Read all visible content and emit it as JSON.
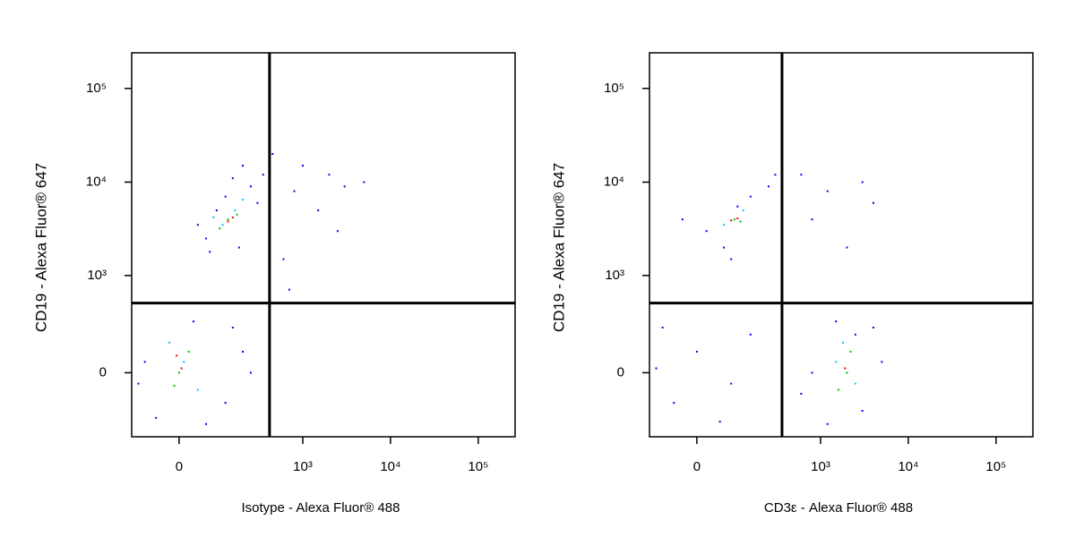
{
  "chart_data": [
    {
      "type": "scatter",
      "xlabel": "Isotype - Alexa Fluor® 488",
      "ylabel": "CD19 - Alexa Fluor® 647",
      "xlim": [
        -124,
        263000
      ],
      "ylim": [
        -427,
        240000
      ],
      "xticks": [
        0,
        {
          "value": 1000,
          "label": "10³"
        },
        {
          "value": 10000,
          "label": "10⁴"
        },
        {
          "value": 100000,
          "label": "10⁵"
        }
      ],
      "yticks": [
        0,
        {
          "value": 1000,
          "label": "10³"
        },
        {
          "value": 10000,
          "label": "10⁴"
        },
        {
          "value": 100000,
          "label": "10⁵"
        }
      ],
      "gate_x": 415,
      "gate_y": 496,
      "series": [
        {
          "color": "#0000ff",
          "x": [
            60,
            120,
            250,
            40,
            300,
            180,
            90,
            350,
            200,
            70,
            150,
            -80,
            120,
            -50,
            200,
            30,
            -100,
            150,
            60,
            250,
            800,
            1500,
            3000,
            600,
            2000,
            5000,
            700,
            450,
            2500,
            1000
          ],
          "y": [
            2500,
            7000,
            9000,
            3500,
            6000,
            2000,
            5000,
            12000,
            15000,
            1800,
            11000,
            50,
            -150,
            -250,
            100,
            300,
            -50,
            250,
            -300,
            0,
            8000,
            5000,
            9000,
            1500,
            12000,
            10000,
            700,
            20000,
            3000,
            15000
          ]
        },
        {
          "color": "#00c8ff",
          "x": [
            110,
            160,
            200,
            80,
            10,
            -20,
            40
          ],
          "y": [
            3500,
            5000,
            6500,
            4200,
            50,
            150,
            -80
          ]
        },
        {
          "color": "#00c000",
          "x": [
            130,
            170,
            100,
            0,
            20,
            -10
          ],
          "y": [
            4000,
            4500,
            3200,
            0,
            100,
            -60
          ]
        },
        {
          "color": "#ff0000",
          "x": [
            130,
            150,
            5,
            -5
          ],
          "y": [
            3800,
            4200,
            20,
            80
          ]
        }
      ]
    },
    {
      "type": "scatter",
      "xlabel": "CD3ε - Alexa Fluor® 488",
      "ylabel": "CD19 - Alexa Fluor® 647",
      "xlim": [
        -124,
        263000
      ],
      "ylim": [
        -427,
        240000
      ],
      "xticks": [
        0,
        {
          "value": 1000,
          "label": "10³"
        },
        {
          "value": 10000,
          "label": "10⁴"
        },
        {
          "value": 100000,
          "label": "10⁵"
        }
      ],
      "yticks": [
        0,
        {
          "value": 1000,
          "label": "10³"
        },
        {
          "value": 10000,
          "label": "10⁴"
        },
        {
          "value": 100000,
          "label": "10⁵"
        }
      ],
      "gate_x": 360,
      "gate_y": 496,
      "series": [
        {
          "color": "#0000ff",
          "x": [
            20,
            150,
            60,
            250,
            100,
            -30,
            300,
            80,
            -100,
            -50,
            0,
            80,
            150,
            -80,
            50,
            800,
            3000,
            1500,
            5000,
            600,
            2500,
            1200,
            4000,
            1200,
            3000,
            800,
            2000,
            4000,
            600
          ],
          "y": [
            3000,
            7000,
            2000,
            9000,
            5500,
            4000,
            12000,
            1500,
            20,
            -150,
            100,
            -50,
            200,
            250,
            -280,
            0,
            -200,
            300,
            50,
            -100,
            200,
            -300,
            250,
            8000,
            10000,
            4000,
            2000,
            6000,
            12000
          ]
        },
        {
          "color": "#00c8ff",
          "x": [
            60,
            120,
            1500,
            2500,
            1800
          ],
          "y": [
            3500,
            5000,
            50,
            -50,
            150
          ]
        },
        {
          "color": "#00c000",
          "x": [
            90,
            110,
            2000,
            1600,
            2200
          ],
          "y": [
            4000,
            3800,
            0,
            -80,
            100
          ]
        },
        {
          "color": "#ff0000",
          "x": [
            100,
            80,
            1900
          ],
          "y": [
            4100,
            3900,
            20
          ]
        }
      ]
    }
  ]
}
